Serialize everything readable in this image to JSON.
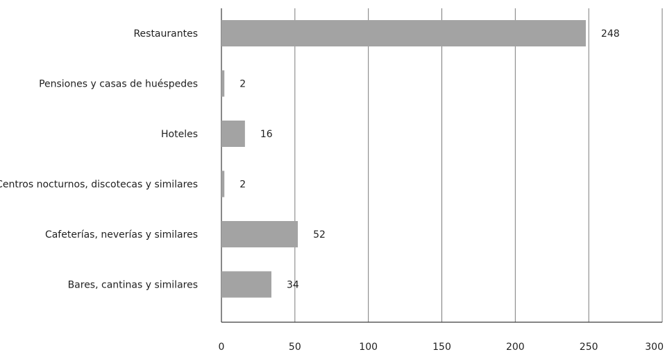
{
  "chart_data": {
    "type": "bar",
    "orientation": "horizontal",
    "categories": [
      "Restaurantes",
      "Pensiones y casas de huéspedes",
      "Hoteles",
      "Centros nocturnos, discotecas y similares",
      "Cafeterías, neverías y similares",
      "Bares, cantinas y similares"
    ],
    "values": [
      248,
      2,
      16,
      2,
      52,
      34
    ],
    "xlim": [
      0,
      300
    ],
    "xticks": [
      0,
      50,
      100,
      150,
      200,
      250,
      300
    ],
    "grid": true,
    "bar_color": "#a3a3a3",
    "title": "",
    "xlabel": "",
    "ylabel": ""
  }
}
